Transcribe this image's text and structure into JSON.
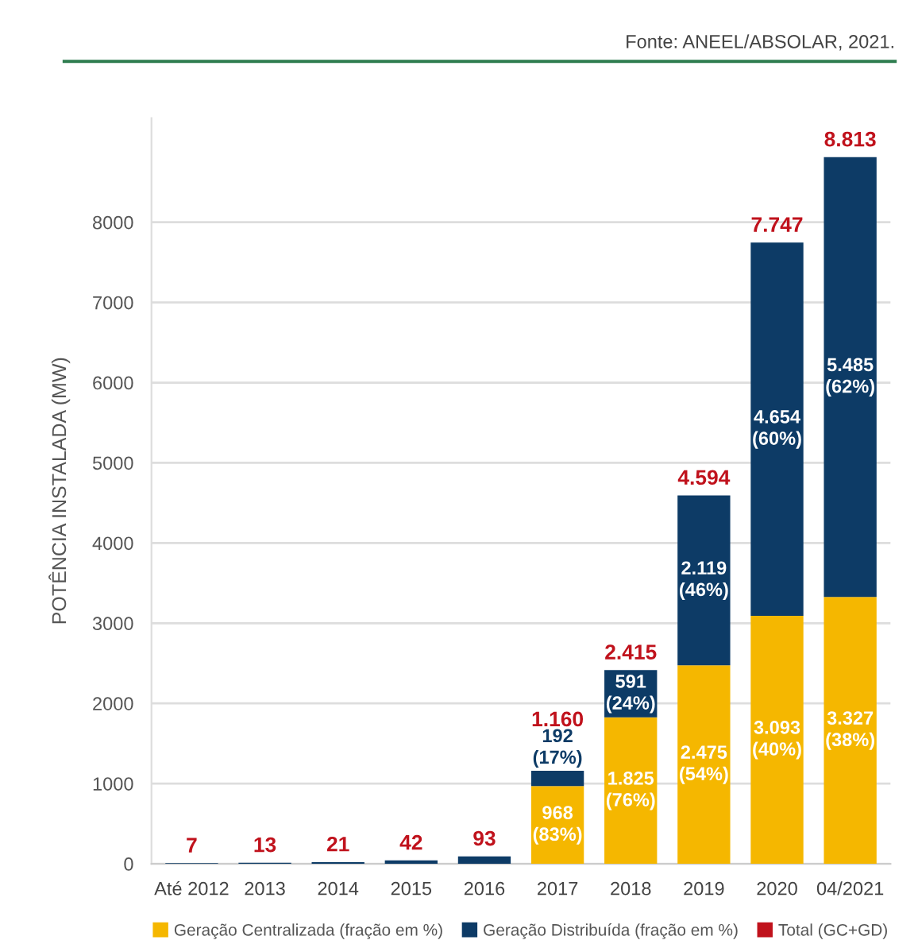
{
  "chart_data": {
    "type": "bar",
    "stacked": true,
    "ylabel": "POTÊNCIA INSTALADA (MW)",
    "annotations": [
      "Fonte: ANEEL/ABSOLAR, 2021.",
      "Total (GC+GD)"
    ],
    "categories": [
      "Até 2012",
      "2013",
      "2014",
      "2015",
      "2016",
      "2017",
      "2018",
      "2019",
      "2020",
      "04/2021"
    ],
    "series": [
      {
        "name": "Geração Centralizada (fração em %)",
        "color": "#f5b700",
        "values": [
          0,
          0,
          0,
          0,
          0,
          968,
          1825,
          2475,
          3093,
          3327
        ],
        "value_labels": [
          null,
          null,
          null,
          null,
          null,
          "968\n(83%)",
          "1.825\n(76%)",
          "2.475\n(54%)",
          "3.093\n(40%)",
          "3.327\n(38%)"
        ]
      },
      {
        "name": "Geração Distribuída (fração em %)",
        "color": "#0d3b66",
        "values": [
          7,
          13,
          21,
          42,
          93,
          192,
          591,
          2119,
          4654,
          5485
        ],
        "value_labels": [
          null,
          null,
          null,
          null,
          null,
          "192\n(17%)",
          "591\n(24%)",
          "2.119\n(46%)",
          "4.654\n(60%)",
          "5.485\n(62%)"
        ]
      }
    ],
    "totals": [
      "7",
      "13",
      "21",
      "42",
      "93",
      "1.160",
      "2.415",
      "4.594",
      "7.747",
      "8.813"
    ],
    "ylim": [
      0,
      9300
    ],
    "yticks": [
      0,
      1000,
      2000,
      3000,
      4000,
      5000,
      6000,
      7000,
      8000
    ],
    "grid": "y",
    "legend": "bottom"
  }
}
